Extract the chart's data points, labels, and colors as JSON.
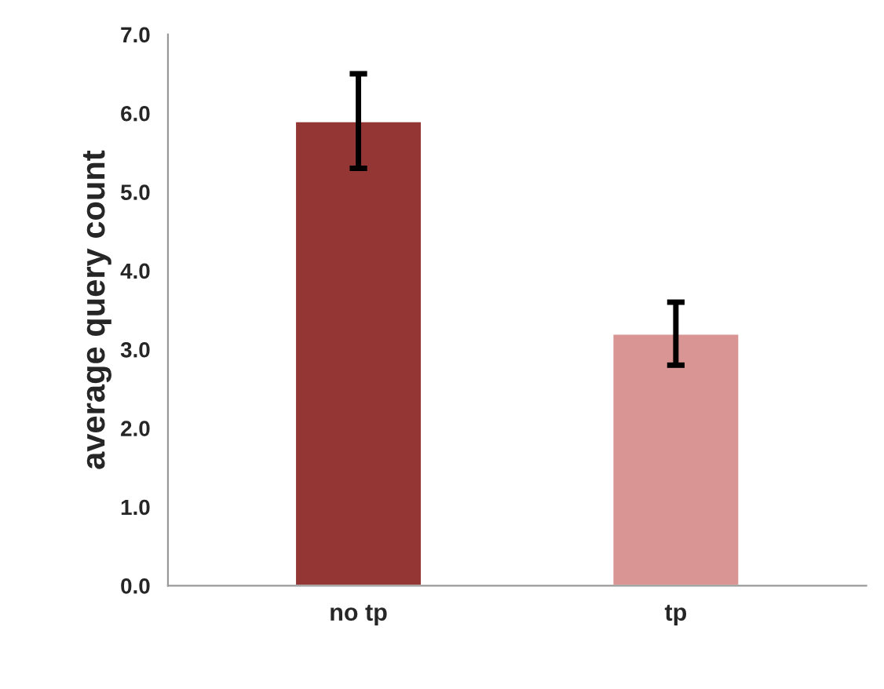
{
  "chart_data": {
    "type": "bar",
    "ylabel": "average query count",
    "categories": [
      "no tp",
      "tp"
    ],
    "values": [
      5.9,
      3.2
    ],
    "colors": [
      "#933634",
      "#d99594"
    ],
    "errors": [
      0.6,
      0.4
    ],
    "ylim": [
      0,
      7
    ],
    "yticks": [
      {
        "value": 0,
        "label": "0.0"
      },
      {
        "value": 1,
        "label": "1.0"
      },
      {
        "value": 2,
        "label": "2.0"
      },
      {
        "value": 3,
        "label": "3.0"
      },
      {
        "value": 4,
        "label": "4.0"
      },
      {
        "value": 5,
        "label": "5.0"
      },
      {
        "value": 6,
        "label": "6.0"
      },
      {
        "value": 7,
        "label": "7.0"
      }
    ],
    "grid": false,
    "legend": false
  }
}
